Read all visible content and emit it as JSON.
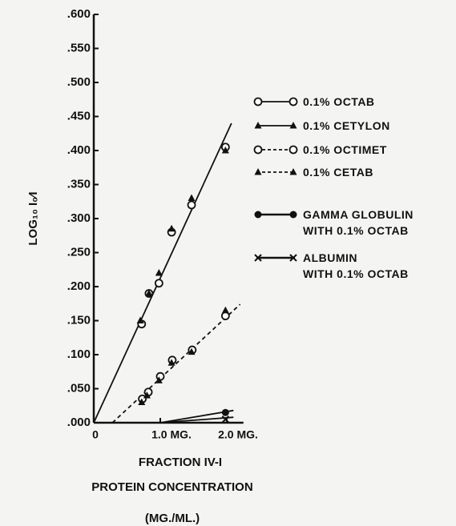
{
  "chart_data": {
    "type": "scatter",
    "ylabel": "LOG₁₀ I₀⁄I",
    "xlabel": [
      "FRACTION IV-I",
      "PROTEIN CONCENTRATION",
      "(MG./ML.)"
    ],
    "xlim": [
      0,
      2.25
    ],
    "ylim": [
      0,
      0.6
    ],
    "xticks": [
      {
        "value": 0,
        "label": "0"
      },
      {
        "value": 1.0,
        "label": "1.0 MG."
      },
      {
        "value": 2.0,
        "label": "2.0 MG."
      }
    ],
    "yticks": [
      {
        "value": 0,
        "label": ".000"
      },
      {
        "value": 0.05,
        "label": ".050"
      },
      {
        "value": 0.1,
        "label": ".100"
      },
      {
        "value": 0.15,
        "label": ".150"
      },
      {
        "value": 0.2,
        "label": ".200"
      },
      {
        "value": 0.25,
        "label": ".250"
      },
      {
        "value": 0.3,
        "label": ".300"
      },
      {
        "value": 0.35,
        "label": ".350"
      },
      {
        "value": 0.4,
        "label": ".400"
      },
      {
        "value": 0.45,
        "label": ".450"
      },
      {
        "value": 0.5,
        "label": ".500"
      },
      {
        "value": 0.55,
        "label": ".550"
      },
      {
        "value": 0.6,
        "label": ".600"
      }
    ],
    "series": [
      {
        "name": "0.1% OCTAB",
        "marker": "open-circle",
        "linestyle": "solid",
        "color": "#111111",
        "x": [
          0.72,
          0.83,
          0.98,
          1.17,
          1.47,
          1.98
        ],
        "values": [
          0.145,
          0.19,
          0.205,
          0.28,
          0.32,
          0.405
        ]
      },
      {
        "name": "0.1% CETYLON",
        "marker": "filled-triangle",
        "linestyle": "solid",
        "color": "#111111",
        "x": [
          0.7,
          0.83,
          0.98,
          1.17,
          1.47,
          1.98
        ],
        "values": [
          0.15,
          0.19,
          0.22,
          0.285,
          0.33,
          0.4
        ]
      },
      {
        "name": "0.1% OCTIMET",
        "marker": "open-circle",
        "linestyle": "dashed",
        "color": "#111111",
        "x": [
          0.73,
          0.82,
          1.0,
          1.18,
          1.48,
          1.98
        ],
        "values": [
          0.035,
          0.045,
          0.068,
          0.092,
          0.107,
          0.157
        ]
      },
      {
        "name": "0.1% CETAB",
        "marker": "filled-triangle",
        "linestyle": "dashed",
        "color": "#111111",
        "x": [
          0.72,
          0.8,
          0.98,
          1.17,
          1.47,
          1.98
        ],
        "values": [
          0.03,
          0.04,
          0.062,
          0.088,
          0.104,
          0.165
        ]
      },
      {
        "name": "GAMMA GLOBULIN\nWITH 0.1% OCTAB",
        "marker": "filled-circle",
        "linestyle": "solid",
        "color": "#111111",
        "x": [
          1.98
        ],
        "values": [
          0.015
        ]
      },
      {
        "name": "ALBUMIN\nWITH 0.1% OCTAB",
        "marker": "x",
        "linestyle": "solid",
        "color": "#111111",
        "x": [
          1.98
        ],
        "values": [
          0.005
        ]
      }
    ],
    "fit_lines": [
      {
        "linestyle": "solid",
        "x": [
          0,
          2.07
        ],
        "y": [
          0,
          0.44
        ]
      },
      {
        "linestyle": "dashed",
        "x": [
          0.28,
          2.2
        ],
        "y": [
          0,
          0.174
        ]
      },
      {
        "linestyle": "solid",
        "x": [
          1.0,
          2.1
        ],
        "y": [
          0,
          0.018
        ]
      },
      {
        "linestyle": "solid",
        "x": [
          1.0,
          2.1
        ],
        "y": [
          0,
          0.008
        ]
      }
    ]
  }
}
